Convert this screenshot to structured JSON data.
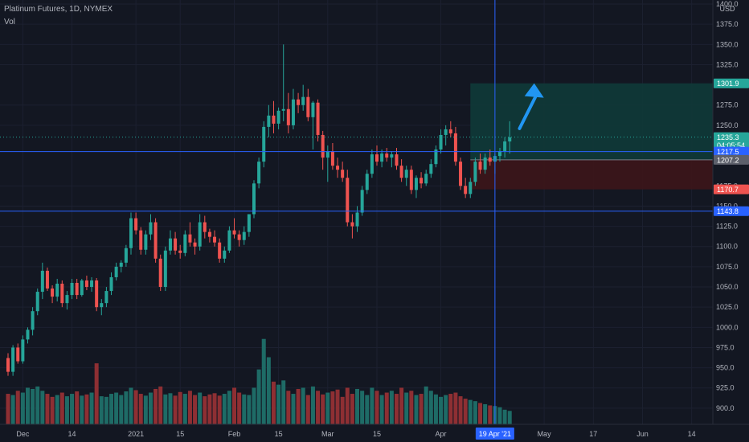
{
  "header": {
    "title": "Platinum Futures, 1D, NYMEX",
    "indicator": "Vol"
  },
  "colors": {
    "background": "#131722",
    "up": "#26a69a",
    "down": "#ef5350",
    "vol_up": "#1e6b66",
    "vol_down": "#8e2f33",
    "hline": "#2962ff",
    "arrow": "#2196f3",
    "target_zone": "#0f3a38",
    "stop_zone": "#3d1519"
  },
  "chart_data": {
    "type": "candlestick",
    "symbol": "Platinum Futures",
    "timeframe": "1D",
    "exchange": "NYMEX",
    "price_currency": "USD",
    "ylim": [
      880,
      1405
    ],
    "y_ticks": [
      900,
      925,
      950,
      975,
      1000,
      1025,
      1050,
      1075,
      1100,
      1125,
      1150,
      1175,
      1250,
      1275,
      1325,
      1350,
      1375,
      1400
    ],
    "y_tick_labels": [
      "900.0",
      "925.0",
      "950.0",
      "975.0",
      "1000.0",
      "1025.0",
      "1050.0",
      "1075.0",
      "1100.0",
      "1125.0",
      "1150.0",
      "1175.0",
      "1250.0",
      "1275.0",
      "1325.0",
      "1350.0",
      "1375.0",
      "1400.0"
    ],
    "x_labels": [
      {
        "label": "Dec",
        "index": 3
      },
      {
        "label": "14",
        "index": 13
      },
      {
        "label": "2021",
        "index": 26
      },
      {
        "label": "15",
        "index": 35
      },
      {
        "label": "Feb",
        "index": 46
      },
      {
        "label": "15",
        "index": 55
      },
      {
        "label": "Mar",
        "index": 65
      },
      {
        "label": "15",
        "index": 75
      },
      {
        "label": "Apr",
        "index": 88
      },
      {
        "label": "19 Apr '21",
        "index": 99
      },
      {
        "label": "May",
        "index": 109
      },
      {
        "label": "17",
        "index": 119
      },
      {
        "label": "Jun",
        "index": 129
      },
      {
        "label": "14",
        "index": 139
      }
    ],
    "candles": [
      [
        962,
        968,
        940,
        945
      ],
      [
        945,
        978,
        940,
        975
      ],
      [
        975,
        980,
        955,
        958
      ],
      [
        958,
        990,
        955,
        985
      ],
      [
        985,
        1000,
        980,
        997
      ],
      [
        997,
        1025,
        990,
        1020
      ],
      [
        1020,
        1048,
        1015,
        1044
      ],
      [
        1044,
        1080,
        1035,
        1070
      ],
      [
        1070,
        1074,
        1045,
        1048
      ],
      [
        1048,
        1052,
        1030,
        1038
      ],
      [
        1038,
        1060,
        1032,
        1054
      ],
      [
        1054,
        1058,
        1025,
        1030
      ],
      [
        1030,
        1045,
        1022,
        1040
      ],
      [
        1040,
        1060,
        1035,
        1055
      ],
      [
        1055,
        1060,
        1035,
        1040
      ],
      [
        1040,
        1060,
        1038,
        1058
      ],
      [
        1058,
        1064,
        1046,
        1050
      ],
      [
        1050,
        1062,
        1044,
        1058
      ],
      [
        1058,
        1061,
        1020,
        1025
      ],
      [
        1025,
        1035,
        1015,
        1030
      ],
      [
        1030,
        1050,
        1025,
        1045
      ],
      [
        1045,
        1068,
        1040,
        1062
      ],
      [
        1062,
        1080,
        1058,
        1075
      ],
      [
        1075,
        1083,
        1068,
        1080
      ],
      [
        1080,
        1102,
        1075,
        1098
      ],
      [
        1098,
        1142,
        1090,
        1135
      ],
      [
        1135,
        1142,
        1115,
        1120
      ],
      [
        1120,
        1124,
        1090,
        1096
      ],
      [
        1096,
        1120,
        1090,
        1115
      ],
      [
        1115,
        1140,
        1108,
        1130
      ],
      [
        1130,
        1135,
        1080,
        1085
      ],
      [
        1085,
        1090,
        1045,
        1050
      ],
      [
        1050,
        1100,
        1045,
        1095
      ],
      [
        1095,
        1120,
        1090,
        1110
      ],
      [
        1110,
        1118,
        1090,
        1095
      ],
      [
        1095,
        1102,
        1085,
        1092
      ],
      [
        1092,
        1120,
        1088,
        1115
      ],
      [
        1115,
        1130,
        1100,
        1105
      ],
      [
        1105,
        1110,
        1090,
        1100
      ],
      [
        1100,
        1140,
        1095,
        1130
      ],
      [
        1130,
        1138,
        1110,
        1118
      ],
      [
        1118,
        1122,
        1105,
        1112
      ],
      [
        1112,
        1120,
        1100,
        1105
      ],
      [
        1105,
        1110,
        1080,
        1085
      ],
      [
        1085,
        1100,
        1080,
        1095
      ],
      [
        1095,
        1125,
        1092,
        1120
      ],
      [
        1120,
        1135,
        1110,
        1115
      ],
      [
        1115,
        1120,
        1100,
        1108
      ],
      [
        1108,
        1125,
        1102,
        1118
      ],
      [
        1118,
        1138,
        1112,
        1140
      ],
      [
        1140,
        1182,
        1135,
        1178
      ],
      [
        1178,
        1210,
        1172,
        1205
      ],
      [
        1205,
        1255,
        1198,
        1248
      ],
      [
        1248,
        1275,
        1235,
        1262
      ],
      [
        1262,
        1280,
        1240,
        1252
      ],
      [
        1252,
        1272,
        1245,
        1268
      ],
      [
        1268,
        1350,
        1255,
        1270
      ],
      [
        1270,
        1290,
        1240,
        1250
      ],
      [
        1250,
        1295,
        1245,
        1282
      ],
      [
        1282,
        1290,
        1265,
        1275
      ],
      [
        1275,
        1300,
        1268,
        1285
      ],
      [
        1285,
        1295,
        1255,
        1260
      ],
      [
        1260,
        1280,
        1220,
        1278
      ],
      [
        1278,
        1282,
        1230,
        1238
      ],
      [
        1238,
        1243,
        1195,
        1210
      ],
      [
        1210,
        1225,
        1180,
        1218
      ],
      [
        1218,
        1228,
        1195,
        1200
      ],
      [
        1200,
        1210,
        1185,
        1195
      ],
      [
        1195,
        1205,
        1180,
        1185
      ],
      [
        1185,
        1195,
        1125,
        1130
      ],
      [
        1130,
        1140,
        1110,
        1125
      ],
      [
        1125,
        1150,
        1118,
        1142
      ],
      [
        1142,
        1175,
        1138,
        1170
      ],
      [
        1170,
        1195,
        1165,
        1190
      ],
      [
        1190,
        1220,
        1185,
        1214
      ],
      [
        1214,
        1225,
        1200,
        1205
      ],
      [
        1205,
        1220,
        1198,
        1215
      ],
      [
        1215,
        1222,
        1205,
        1210
      ],
      [
        1210,
        1218,
        1198,
        1214
      ],
      [
        1214,
        1222,
        1195,
        1200
      ],
      [
        1200,
        1208,
        1180,
        1185
      ],
      [
        1185,
        1200,
        1175,
        1195
      ],
      [
        1195,
        1200,
        1165,
        1170
      ],
      [
        1170,
        1188,
        1160,
        1185
      ],
      [
        1185,
        1192,
        1172,
        1178
      ],
      [
        1178,
        1195,
        1175,
        1190
      ],
      [
        1190,
        1208,
        1185,
        1202
      ],
      [
        1202,
        1225,
        1198,
        1220
      ],
      [
        1220,
        1245,
        1215,
        1238
      ],
      [
        1238,
        1250,
        1225,
        1245
      ],
      [
        1245,
        1255,
        1235,
        1240
      ],
      [
        1240,
        1248,
        1200,
        1205
      ],
      [
        1205,
        1210,
        1170,
        1175
      ],
      [
        1175,
        1185,
        1160,
        1165
      ],
      [
        1165,
        1185,
        1160,
        1180
      ],
      [
        1180,
        1210,
        1175,
        1205
      ],
      [
        1205,
        1215,
        1190,
        1195
      ],
      [
        1195,
        1215,
        1190,
        1210
      ],
      [
        1210,
        1220,
        1200,
        1205
      ],
      [
        1205,
        1215,
        1190,
        1212
      ],
      [
        1212,
        1222,
        1205,
        1218
      ],
      [
        1218,
        1235,
        1210,
        1230
      ],
      [
        1230,
        1255,
        1215,
        1235
      ]
    ],
    "volume": [
      50,
      48,
      55,
      52,
      60,
      58,
      62,
      55,
      50,
      45,
      48,
      52,
      46,
      50,
      54,
      47,
      49,
      52,
      100,
      46,
      45,
      50,
      52,
      48,
      54,
      60,
      56,
      50,
      47,
      52,
      58,
      62,
      49,
      51,
      47,
      53,
      50,
      55,
      48,
      52,
      46,
      49,
      51,
      47,
      50,
      55,
      60,
      52,
      49,
      48,
      60,
      90,
      140,
      110,
      70,
      65,
      72,
      55,
      50,
      58,
      60,
      48,
      62,
      55,
      49,
      52,
      54,
      57,
      45,
      60,
      50,
      58,
      55,
      48,
      60,
      55,
      48,
      52,
      55,
      50,
      60,
      52,
      55,
      48,
      50,
      62,
      55,
      49,
      45,
      48,
      50,
      52,
      46,
      42,
      40,
      38,
      35,
      33,
      31,
      30,
      28,
      24,
      22
    ],
    "vol_ylim": [
      0,
      400
    ],
    "horizontal_lines": [
      1217.5,
      1143.8
    ],
    "crosshair_x_index": 99,
    "current_price": 1235.3,
    "countdown": "04:05:54",
    "price_badges": [
      {
        "label": "1301.9",
        "value": 1301.9,
        "color": "#26a69a"
      },
      {
        "label": "1235.3",
        "value": 1235.3,
        "color": "#26a69a"
      },
      {
        "label": "1217.5",
        "value": 1217.5,
        "color": "#2962ff"
      },
      {
        "label": "1207.2",
        "value": 1207.2,
        "color": "#5d606b"
      },
      {
        "label": "1170.7",
        "value": 1170.7,
        "color": "#ef5350"
      },
      {
        "label": "1143.8",
        "value": 1143.8,
        "color": "#2962ff"
      }
    ],
    "long_position": {
      "entry": 1207.2,
      "target": 1301.9,
      "stop": 1170.7,
      "start_index": 94,
      "end_index": 150
    },
    "arrow": {
      "from_index": 104,
      "from_price": 1246,
      "to_index": 106,
      "to_price": 1292
    },
    "date_highlight": "19 Apr '21"
  }
}
